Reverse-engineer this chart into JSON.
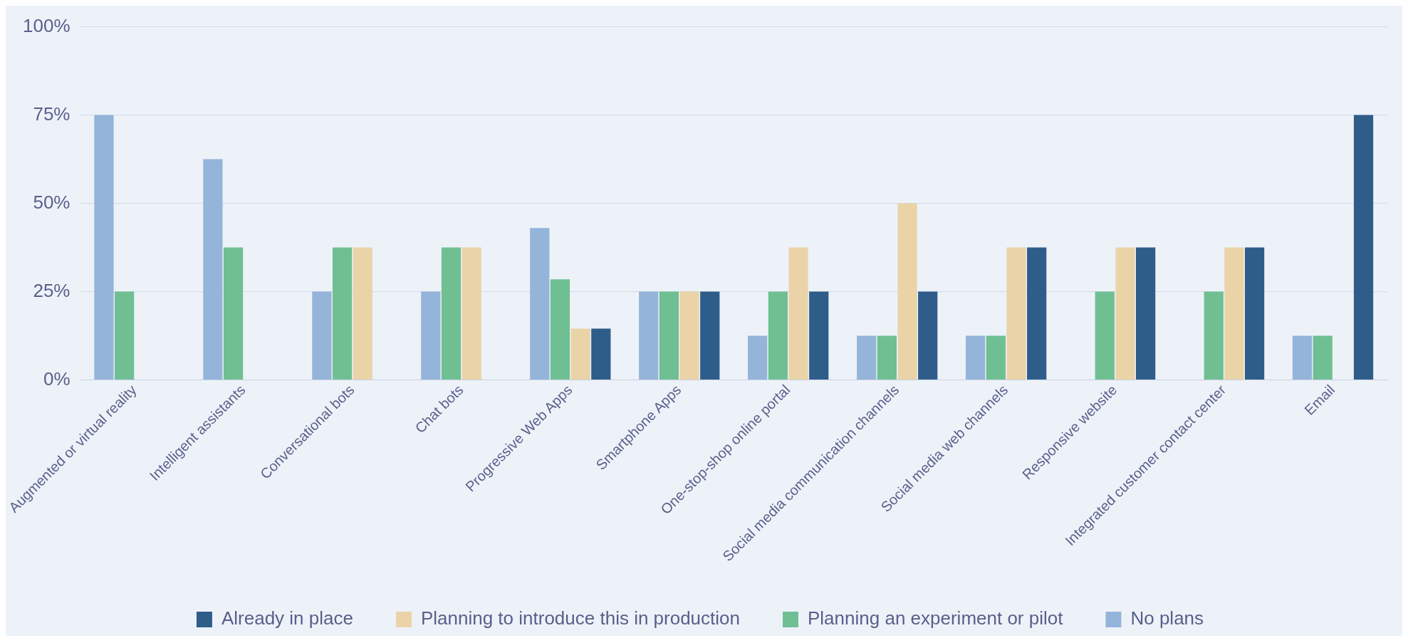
{
  "chart_data": {
    "type": "bar",
    "categories": [
      "Augmented or virtual reality",
      "Intelligent assistants",
      "Conversational bots",
      "Chat bots",
      "Progressive Web Apps",
      "Smartphone Apps",
      "One-stop-shop online portal",
      "Social media communication channels",
      "Social media web channels",
      "Responsive website",
      "Integrated customer contact center",
      "Email"
    ],
    "series": [
      {
        "name": "No plans",
        "color": "#94b4da",
        "values": [
          75,
          62.5,
          25,
          25,
          43,
          25,
          12.5,
          12.5,
          12.5,
          0,
          0,
          12.5
        ]
      },
      {
        "name": "Planning an experiment or pilot",
        "color": "#6fbf93",
        "values": [
          25,
          37.5,
          37.5,
          37.5,
          28.5,
          25,
          25,
          12.5,
          12.5,
          25,
          25,
          12.5
        ]
      },
      {
        "name": "Planning to introduce this in production",
        "color": "#ebd3a8",
        "values": [
          0,
          0,
          37.5,
          37.5,
          14.5,
          25,
          37.5,
          50,
          37.5,
          37.5,
          37.5,
          0
        ]
      },
      {
        "name": "Already in place",
        "color": "#2f5d8a",
        "values": [
          0,
          0,
          0,
          0,
          14.5,
          25,
          25,
          25,
          37.5,
          37.5,
          37.5,
          75
        ]
      }
    ],
    "ylim": [
      0,
      100
    ],
    "yticks": [
      {
        "value": 0,
        "label": "0%"
      },
      {
        "value": 25,
        "label": "25%"
      },
      {
        "value": 50,
        "label": "50%"
      },
      {
        "value": 75,
        "label": "75%"
      },
      {
        "value": 100,
        "label": "100%"
      }
    ],
    "grid": "y",
    "legend": "bottom"
  }
}
